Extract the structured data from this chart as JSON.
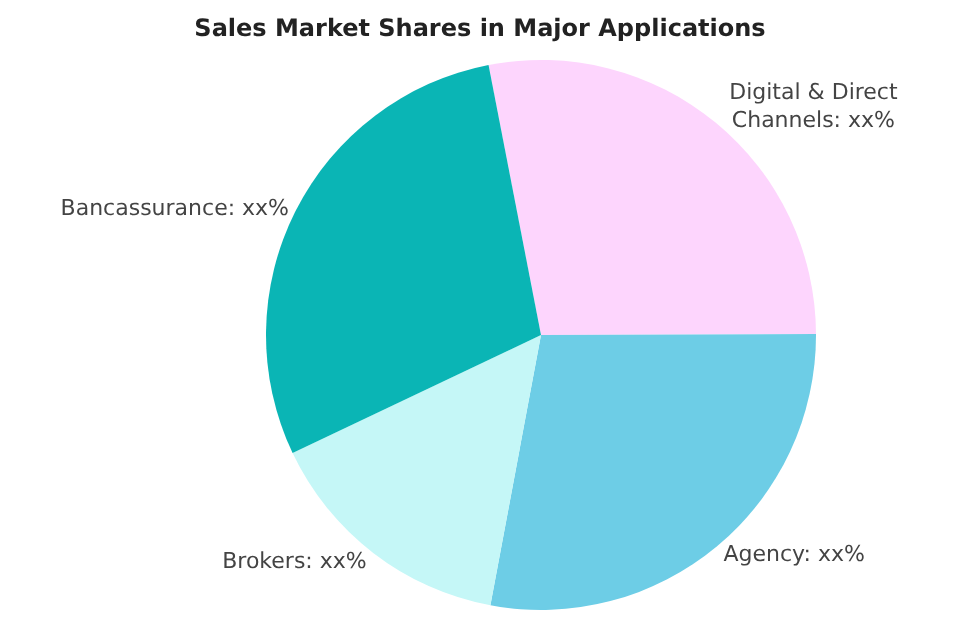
{
  "chart_data": {
    "type": "pie",
    "title": "Sales Market Shares in Major Applications",
    "categories": [
      "Digital & Direct Channels",
      "Agency",
      "Brokers",
      "Bancassurance"
    ],
    "values": [
      28,
      28,
      15,
      29
    ],
    "value_labels": [
      "xx%",
      "xx%",
      "xx%",
      "xx%"
    ],
    "colors": [
      "#fdd5fd",
      "#6dcde6",
      "#c5f7f7",
      "#0ab5b5"
    ],
    "legend": false
  }
}
